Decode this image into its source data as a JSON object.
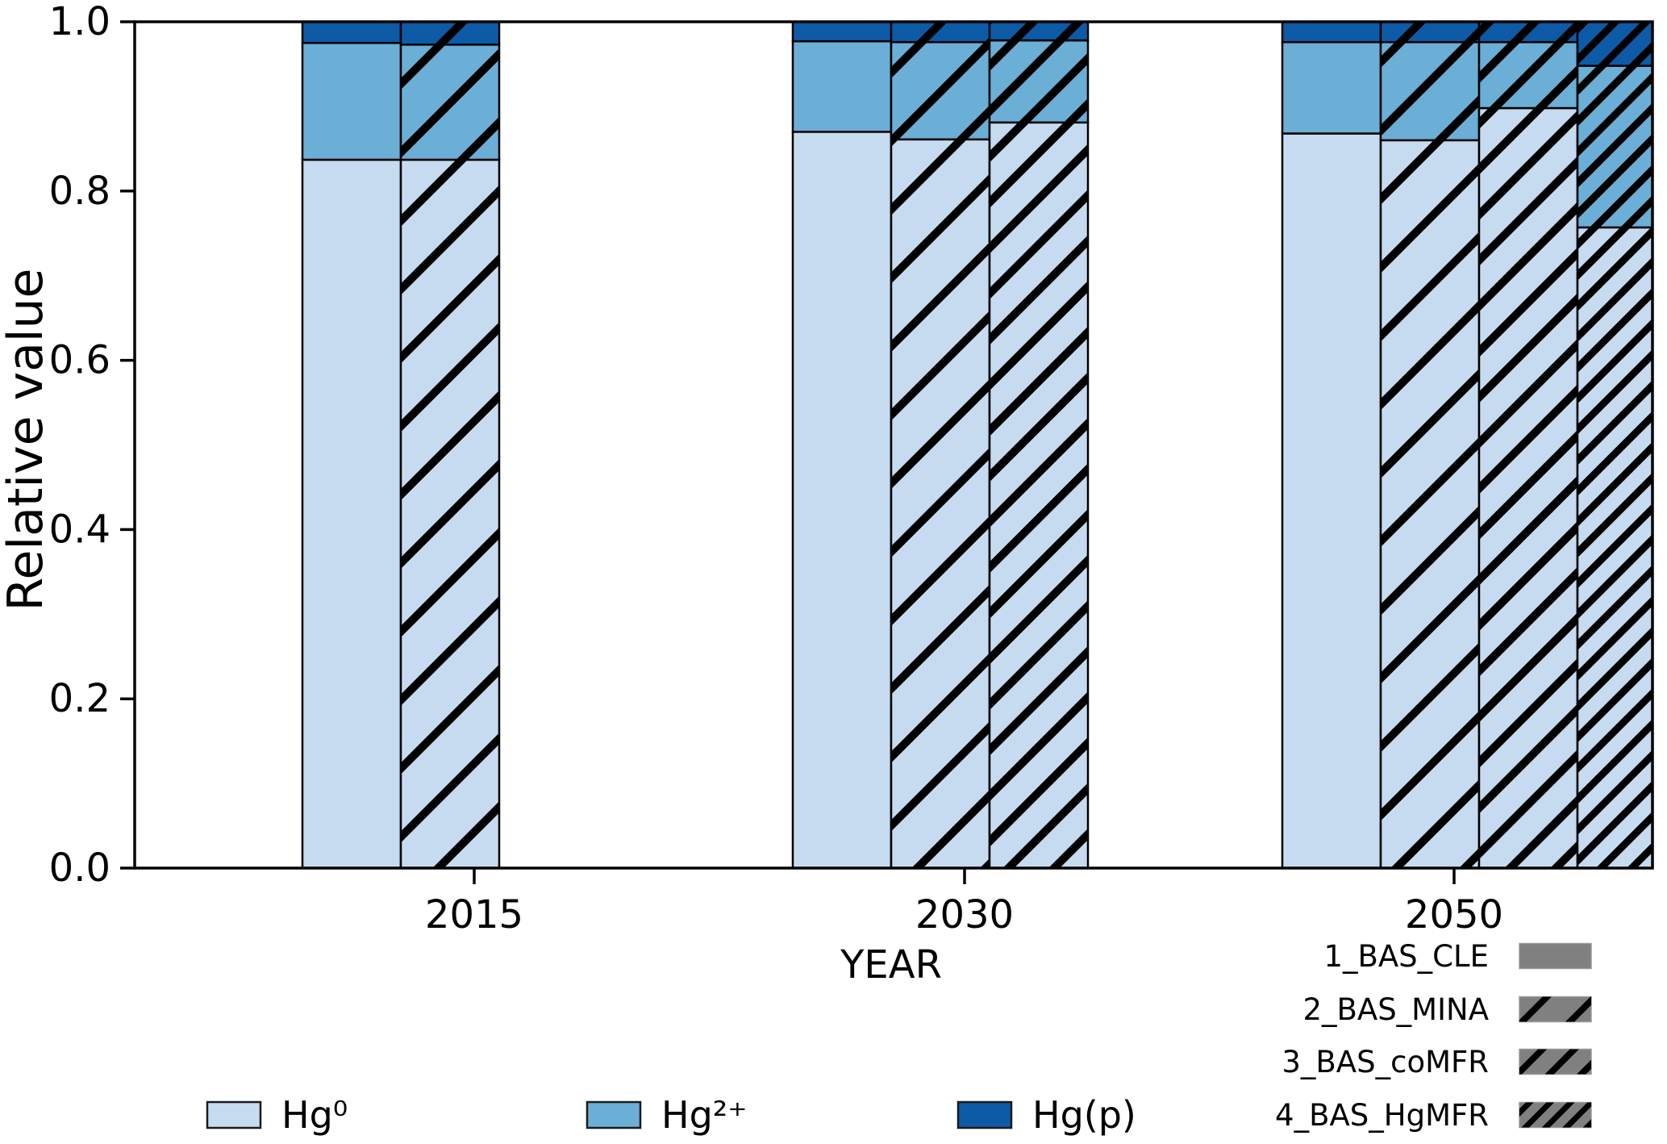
{
  "chart_data": {
    "type": "bar",
    "variant": "grouped-stacked-relative",
    "title": "",
    "xlabel": "YEAR",
    "ylabel": "Relative value",
    "ylim": [
      0.0,
      1.0
    ],
    "yticks": [
      0.0,
      0.2,
      0.4,
      0.6,
      0.8,
      1.0
    ],
    "ytick_labels": [
      "0.0",
      "0.2",
      "0.4",
      "0.6",
      "0.8",
      "1.0"
    ],
    "categories": [
      "2015",
      "2030",
      "2050"
    ],
    "grid": false,
    "background": "#ffffff",
    "bar_edge_color": "#000000",
    "hatch_color": "#000000",
    "scenario_swatch_color": "#808080",
    "series": [
      {
        "name": "Hg⁰",
        "color": "#c6dbef"
      },
      {
        "name": "Hg²⁺",
        "color": "#6baed6"
      },
      {
        "name": "Hg(p)",
        "color": "#0d5aa7"
      }
    ],
    "scenarios": [
      {
        "name": "1_BAS_CLE",
        "hatch": "none"
      },
      {
        "name": "2_BAS_MINA",
        "hatch": "sparse"
      },
      {
        "name": "3_BAS_coMFR",
        "hatch": "medium"
      },
      {
        "name": "4_BAS_HgMFR",
        "hatch": "dense"
      }
    ],
    "bars": [
      {
        "category": "2015",
        "scenario": "1_BAS_CLE",
        "values": [
          0.837,
          0.138,
          0.025
        ]
      },
      {
        "category": "2015",
        "scenario": "2_BAS_MINA",
        "values": [
          0.837,
          0.136,
          0.027
        ]
      },
      {
        "category": "2030",
        "scenario": "1_BAS_CLE",
        "values": [
          0.87,
          0.107,
          0.023
        ]
      },
      {
        "category": "2030",
        "scenario": "2_BAS_MINA",
        "values": [
          0.861,
          0.115,
          0.024
        ]
      },
      {
        "category": "2030",
        "scenario": "3_BAS_coMFR",
        "values": [
          0.881,
          0.097,
          0.022
        ]
      },
      {
        "category": "2050",
        "scenario": "1_BAS_CLE",
        "values": [
          0.868,
          0.108,
          0.024
        ]
      },
      {
        "category": "2050",
        "scenario": "2_BAS_MINA",
        "values": [
          0.86,
          0.116,
          0.024
        ]
      },
      {
        "category": "2050",
        "scenario": "3_BAS_coMFR",
        "values": [
          0.898,
          0.078,
          0.024
        ]
      },
      {
        "category": "2050",
        "scenario": "4_BAS_HgMFR",
        "values": [
          0.757,
          0.191,
          0.052
        ]
      }
    ],
    "legend": {
      "species_position": "bottom",
      "scenario_position": "bottom-right"
    }
  }
}
